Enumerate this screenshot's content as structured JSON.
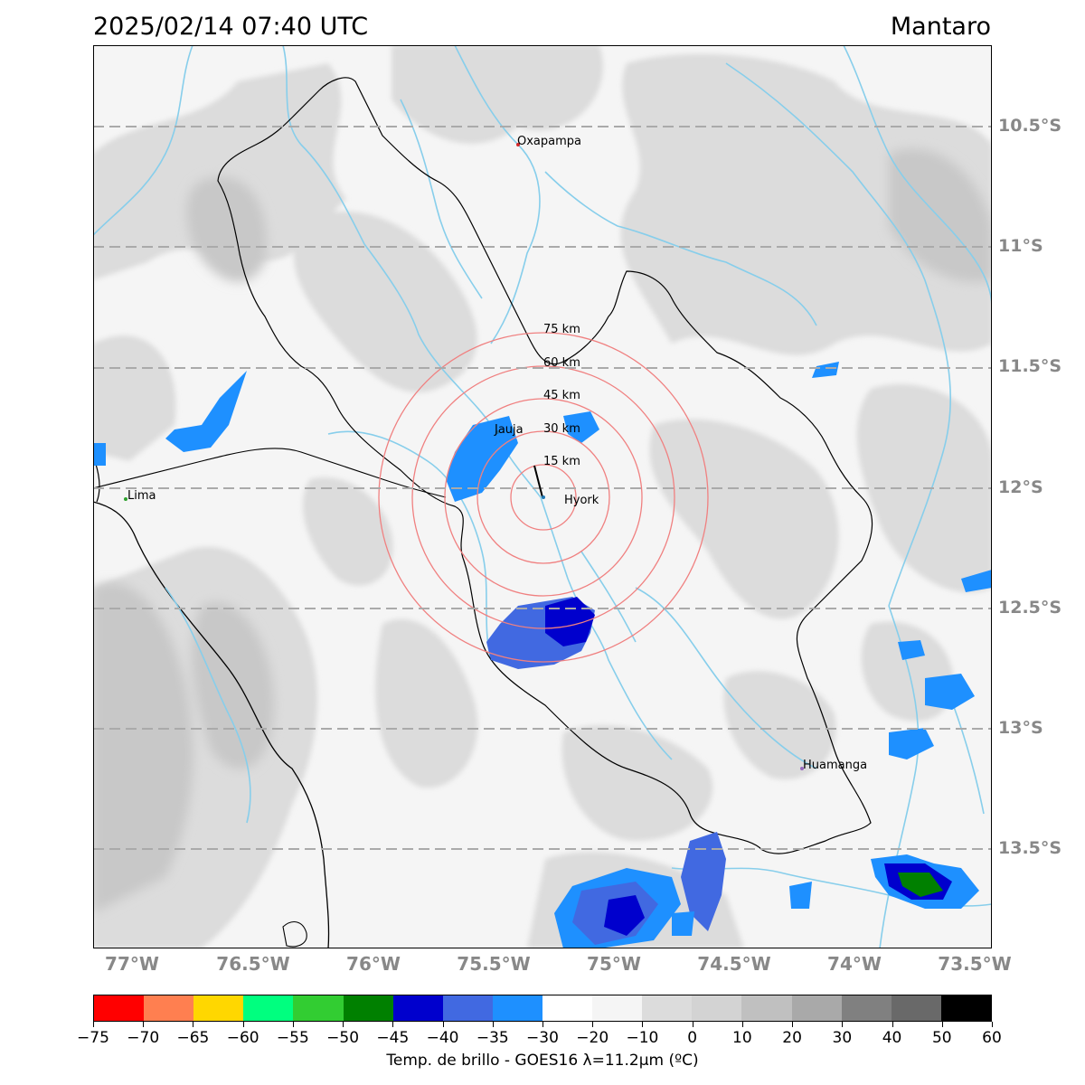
{
  "header": {
    "datetime": "2025/02/14 07:40 UTC",
    "region": "Mantaro"
  },
  "map": {
    "lat_ticks": [
      "10.5°S",
      "11°S",
      "11.5°S",
      "12°S",
      "12.5°S",
      "13°S",
      "13.5°S"
    ],
    "lon_ticks": [
      "77°W",
      "76.5°W",
      "76°W",
      "75.5°W",
      "75°W",
      "74.5°W",
      "74°W",
      "73.5°W"
    ],
    "cities": [
      {
        "name": "Oxapampa",
        "color": "#d62728"
      },
      {
        "name": "Jauja",
        "color": "#1f77b4"
      },
      {
        "name": "Lima",
        "color": "#2ca02c"
      },
      {
        "name": "Hyork",
        "color": "#1f77b4"
      },
      {
        "name": "Huamanga",
        "color": "#9467bd"
      }
    ],
    "range_rings": [
      "15 km",
      "30 km",
      "45 km",
      "60 km",
      "75 km"
    ],
    "ring_color": "#f08080",
    "river_color": "#87ceeb"
  },
  "colorbar": {
    "ticks": [
      "−75",
      "−70",
      "−65",
      "−60",
      "−55",
      "−50",
      "−45",
      "−40",
      "−35",
      "−30",
      "−20",
      "−10",
      "0",
      "10",
      "20",
      "30",
      "40",
      "50",
      "60"
    ],
    "colors": [
      "#ff0000",
      "#ff7f50",
      "#ffd700",
      "#00ff7f",
      "#32cd32",
      "#008000",
      "#0000cd",
      "#4169e1",
      "#1e90ff",
      "#ffffff",
      "#f5f5f5",
      "#dcdcdc",
      "#d3d3d3",
      "#c0c0c0",
      "#a9a9a9",
      "#808080",
      "#696969",
      "#000000"
    ],
    "title": "Temp. de brillo - GOES16 λ=11.2μm (ºC)"
  }
}
